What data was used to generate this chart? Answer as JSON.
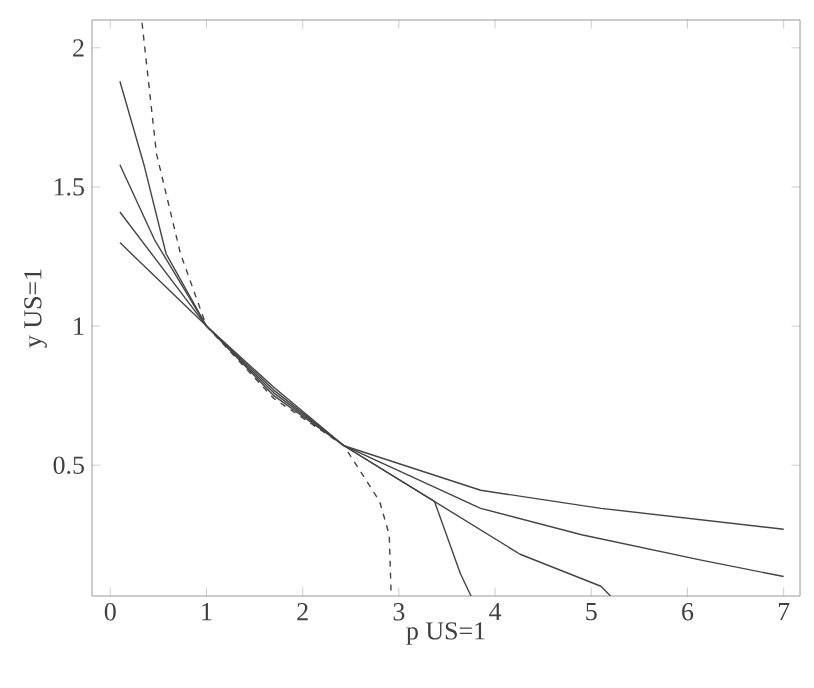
{
  "chart_data": {
    "type": "line",
    "xlabel": "p US=1",
    "ylabel": "y US=1",
    "xlim": [
      -0.19,
      7.17
    ],
    "ylim": [
      0.03,
      2.1
    ],
    "xticks": [
      0,
      1,
      2,
      3,
      4,
      5,
      6,
      7
    ],
    "yticks": [
      0.5,
      1,
      1.5,
      2
    ],
    "grid": false,
    "series": [
      {
        "color": "#444444",
        "line_style": "dashed",
        "x": [
          0.33,
          0.48,
          0.73,
          1,
          1.7,
          2.43,
          2.8,
          2.9,
          2.92
        ],
        "values": [
          2.09,
          1.62,
          1.26,
          1,
          0.74,
          0.57,
          0.37,
          0.25,
          0.03
        ]
      },
      {
        "color": "#444444",
        "line_style": "solid",
        "x": [
          0.1,
          0.35,
          0.58,
          1,
          1.7,
          2.43,
          3.37,
          3.64,
          3.75
        ],
        "values": [
          1.88,
          1.58,
          1.26,
          1,
          0.75,
          0.57,
          0.37,
          0.11,
          0.03
        ]
      },
      {
        "color": "#444444",
        "line_style": "solid",
        "x": [
          0.1,
          0.46,
          1,
          1.7,
          2.43,
          4.26,
          5.1,
          5.2
        ],
        "values": [
          1.58,
          1.31,
          1,
          0.76,
          0.57,
          0.18,
          0.065,
          0.03
        ]
      },
      {
        "color": "#444444",
        "line_style": "solid",
        "x": [
          0.1,
          1,
          1.7,
          2.43,
          3.85,
          4.9,
          6.13,
          7
        ],
        "values": [
          1.41,
          1,
          0.77,
          0.57,
          0.345,
          0.25,
          0.16,
          0.1
        ]
      },
      {
        "color": "#444444",
        "line_style": "solid",
        "x": [
          0.1,
          1,
          1.7,
          2.43,
          3.85,
          5.1,
          7
        ],
        "values": [
          1.3,
          1,
          0.78,
          0.57,
          0.41,
          0.345,
          0.27
        ]
      }
    ]
  }
}
